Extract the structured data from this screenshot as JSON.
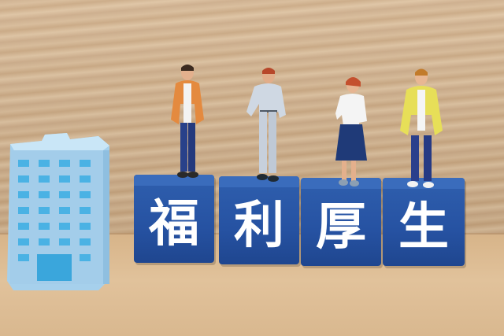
{
  "blocks": [
    {
      "char": "福"
    },
    {
      "char": "利"
    },
    {
      "char": "厚"
    },
    {
      "char": "生"
    }
  ],
  "colors": {
    "wall": "#cfae88",
    "table": "#dcbc92",
    "block_blue": "#2a58a8",
    "building": "#a9d3ee",
    "window": "#4fb6e6"
  },
  "objects": [
    "building-model",
    "figure-orange-jacket",
    "figure-white-uniform",
    "figure-navy-skirt",
    "figure-yellow-jacket"
  ]
}
